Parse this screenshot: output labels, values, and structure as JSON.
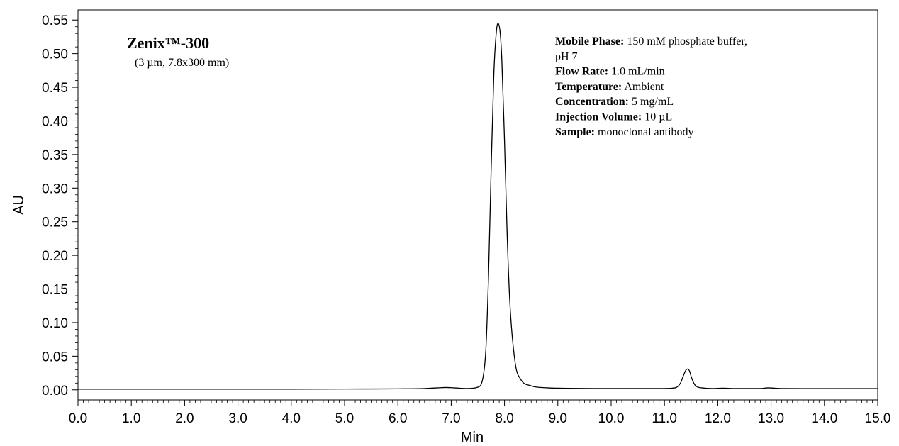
{
  "chart_data": {
    "type": "line",
    "title": "Zenix™-300",
    "subtitle": "(3 µm, 7.8x300 mm)",
    "xlabel": "Min",
    "ylabel": "AU",
    "xlim": [
      0.0,
      15.0
    ],
    "ylim": [
      -0.015,
      0.565
    ],
    "x_ticks": [
      "0.0",
      "1.0",
      "2.0",
      "3.0",
      "4.0",
      "5.0",
      "6.0",
      "7.0",
      "8.0",
      "9.0",
      "10.0",
      "11.0",
      "12.0",
      "13.0",
      "14.0",
      "15.0"
    ],
    "x_tick_values": [
      0,
      1,
      2,
      3,
      4,
      5,
      6,
      7,
      8,
      9,
      10,
      11,
      12,
      13,
      14,
      15
    ],
    "y_ticks": [
      "0.00",
      "0.05",
      "0.10",
      "0.15",
      "0.20",
      "0.25",
      "0.30",
      "0.35",
      "0.40",
      "0.45",
      "0.50",
      "0.55"
    ],
    "y_tick_values": [
      0,
      0.05,
      0.1,
      0.15,
      0.2,
      0.25,
      0.3,
      0.35,
      0.4,
      0.45,
      0.5,
      0.55
    ],
    "grid": false,
    "series": [
      {
        "color": "#000000",
        "x": [
          0.0,
          1.0,
          2.0,
          3.0,
          4.0,
          5.0,
          6.0,
          6.5,
          6.75,
          6.9,
          7.05,
          7.3,
          7.5,
          7.6,
          7.65,
          7.7,
          7.75,
          7.8,
          7.85,
          7.88,
          7.92,
          7.95,
          8.0,
          8.05,
          8.1,
          8.2,
          8.3,
          8.5,
          8.8,
          9.0,
          10.0,
          11.0,
          11.2,
          11.3,
          11.35,
          11.4,
          11.43,
          11.47,
          11.5,
          11.55,
          11.6,
          11.7,
          11.9,
          12.1,
          12.3,
          12.8,
          12.95,
          13.05,
          13.2,
          14.0,
          15.0
        ],
        "y": [
          0.001,
          0.001,
          0.001,
          0.001,
          0.001,
          0.0012,
          0.0015,
          0.002,
          0.003,
          0.0035,
          0.003,
          0.002,
          0.004,
          0.02,
          0.06,
          0.17,
          0.33,
          0.47,
          0.535,
          0.545,
          0.53,
          0.49,
          0.37,
          0.23,
          0.13,
          0.04,
          0.016,
          0.006,
          0.003,
          0.0025,
          0.002,
          0.002,
          0.003,
          0.01,
          0.02,
          0.029,
          0.031,
          0.028,
          0.02,
          0.01,
          0.005,
          0.003,
          0.002,
          0.0025,
          0.002,
          0.002,
          0.003,
          0.0025,
          0.002,
          0.0018,
          0.0018
        ]
      }
    ],
    "annotations": [
      {
        "label": "Mobile Phase:",
        "text": " 150 mM phosphate buffer,"
      },
      {
        "label": "",
        "text": "pH 7"
      },
      {
        "label": "Flow Rate:",
        "text": " 1.0 mL/min"
      },
      {
        "label": "Temperature:",
        "text": " Ambient"
      },
      {
        "label": "Concentration:",
        "text": " 5 mg/mL"
      },
      {
        "label": "Injection Volume:",
        "text": " 10 µL"
      },
      {
        "label": "Sample:",
        "text": " monoclonal antibody"
      }
    ]
  }
}
